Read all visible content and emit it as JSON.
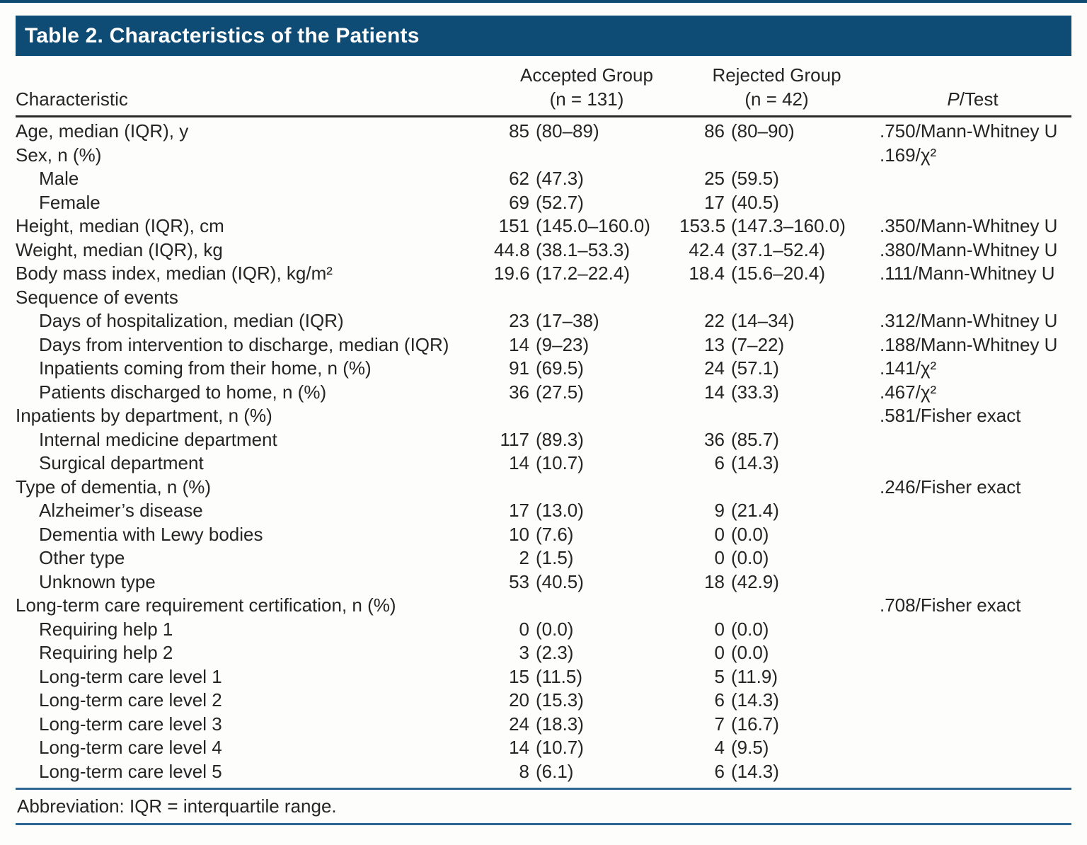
{
  "colors": {
    "title_bar_blue": "#0e4c75",
    "top_strip_blue": "#0f4a70",
    "footer_rule_blue": "#2e6593",
    "header_rule_dark": "#2a2a2a",
    "text": "#252525",
    "title_text": "#ffffff",
    "page_background": "#fdfdfb"
  },
  "title": "Table 2. Characteristics of the Patients",
  "table": {
    "headers": {
      "characteristic": "Characteristic",
      "accepted_line1": "Accepted Group",
      "accepted_line2": "(n = 131)",
      "rejected_line1": "Rejected Group",
      "rejected_line2": "(n = 42)",
      "p_italic": "P",
      "p_rest": "/Test"
    },
    "rows": [
      {
        "label": "Age, median (IQR), y",
        "indent": 0,
        "acc_v": "85",
        "acc_r": "(80–89)",
        "rej_v": "86",
        "rej_r": "(80–90)",
        "p": ".750/Mann-Whitney U"
      },
      {
        "label": "Sex, n (%)",
        "indent": 0,
        "p": ".169/χ²"
      },
      {
        "label": "Male",
        "indent": 1,
        "acc_v": "62",
        "acc_r": "(47.3)",
        "rej_v": "25",
        "rej_r": "(59.5)"
      },
      {
        "label": "Female",
        "indent": 1,
        "acc_v": "69",
        "acc_r": "(52.7)",
        "rej_v": "17",
        "rej_r": "(40.5)"
      },
      {
        "label": "Height, median (IQR), cm",
        "indent": 0,
        "acc_v": "151",
        "acc_r": "(145.0–160.0)",
        "rej_v": "153.5",
        "rej_r": "(147.3–160.0)",
        "p": ".350/Mann-Whitney U"
      },
      {
        "label": "Weight, median (IQR), kg",
        "indent": 0,
        "acc_v": "44.8",
        "acc_r": "(38.1–53.3)",
        "rej_v": "42.4",
        "rej_r": "(37.1–52.4)",
        "p": ".380/Mann-Whitney U"
      },
      {
        "label": "Body mass index, median (IQR), kg/m²",
        "indent": 0,
        "acc_v": "19.6",
        "acc_r": "(17.2–22.4)",
        "rej_v": "18.4",
        "rej_r": "(15.6–20.4)",
        "p": ".111/Mann-Whitney U"
      },
      {
        "label": "Sequence of events",
        "indent": 0
      },
      {
        "label": "Days of hospitalization, median (IQR)",
        "indent": 1,
        "acc_v": "23",
        "acc_r": "(17–38)",
        "rej_v": "22",
        "rej_r": "(14–34)",
        "p": ".312/Mann-Whitney U"
      },
      {
        "label": "Days from intervention to discharge, median (IQR)",
        "indent": 1,
        "acc_v": "14",
        "acc_r": "(9–23)",
        "rej_v": "13",
        "rej_r": "(7–22)",
        "p": ".188/Mann-Whitney U"
      },
      {
        "label": "Inpatients coming from their home, n (%)",
        "indent": 1,
        "acc_v": "91",
        "acc_r": "(69.5)",
        "rej_v": "24",
        "rej_r": "(57.1)",
        "p": ".141/χ²"
      },
      {
        "label": "Patients discharged to home, n (%)",
        "indent": 1,
        "acc_v": "36",
        "acc_r": "(27.5)",
        "rej_v": "14",
        "rej_r": "(33.3)",
        "p": ".467/χ²"
      },
      {
        "label": "Inpatients by department, n (%)",
        "indent": 0,
        "p": ".581/Fisher exact"
      },
      {
        "label": "Internal medicine department",
        "indent": 1,
        "acc_v": "117",
        "acc_r": "(89.3)",
        "rej_v": "36",
        "rej_r": "(85.7)"
      },
      {
        "label": "Surgical department",
        "indent": 1,
        "acc_v": "14",
        "acc_r": "(10.7)",
        "rej_v": "6",
        "rej_r": "(14.3)"
      },
      {
        "label": "Type of dementia, n (%)",
        "indent": 0,
        "p": ".246/Fisher exact"
      },
      {
        "label": "Alzheimer’s disease",
        "indent": 1,
        "acc_v": "17",
        "acc_r": "(13.0)",
        "rej_v": "9",
        "rej_r": "(21.4)"
      },
      {
        "label": "Dementia with Lewy bodies",
        "indent": 1,
        "acc_v": "10",
        "acc_r": "(7.6)",
        "rej_v": "0",
        "rej_r": "(0.0)"
      },
      {
        "label": "Other type",
        "indent": 1,
        "acc_v": "2",
        "acc_r": "(1.5)",
        "rej_v": "0",
        "rej_r": "(0.0)"
      },
      {
        "label": "Unknown type",
        "indent": 1,
        "acc_v": "53",
        "acc_r": "(40.5)",
        "rej_v": "18",
        "rej_r": "(42.9)"
      },
      {
        "label": "Long-term care requirement certification, n (%)",
        "indent": 0,
        "p": ".708/Fisher exact"
      },
      {
        "label": "Requiring help 1",
        "indent": 1,
        "acc_v": "0",
        "acc_r": "(0.0)",
        "rej_v": "0",
        "rej_r": "(0.0)"
      },
      {
        "label": "Requiring help 2",
        "indent": 1,
        "acc_v": "3",
        "acc_r": "(2.3)",
        "rej_v": "0",
        "rej_r": "(0.0)"
      },
      {
        "label": "Long-term care level 1",
        "indent": 1,
        "acc_v": "15",
        "acc_r": "(11.5)",
        "rej_v": "5",
        "rej_r": "(11.9)"
      },
      {
        "label": "Long-term care level 2",
        "indent": 1,
        "acc_v": "20",
        "acc_r": "(15.3)",
        "rej_v": "6",
        "rej_r": "(14.3)"
      },
      {
        "label": "Long-term care level 3",
        "indent": 1,
        "acc_v": "24",
        "acc_r": "(18.3)",
        "rej_v": "7",
        "rej_r": "(16.7)"
      },
      {
        "label": "Long-term care level 4",
        "indent": 1,
        "acc_v": "14",
        "acc_r": "(10.7)",
        "rej_v": "4",
        "rej_r": "(9.5)"
      },
      {
        "label": "Long-term care level 5",
        "indent": 1,
        "acc_v": "8",
        "acc_r": "(6.1)",
        "rej_v": "6",
        "rej_r": "(14.3)"
      }
    ]
  },
  "footer": {
    "note": "Abbreviation: IQR = interquartile range."
  }
}
